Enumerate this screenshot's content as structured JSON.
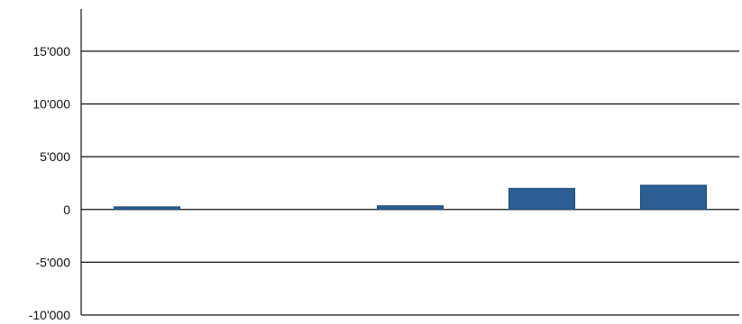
{
  "chart_data": {
    "type": "bar",
    "title": "",
    "xlabel": "",
    "ylabel": "",
    "categories": [
      "",
      "",
      "",
      "",
      ""
    ],
    "values": [
      250,
      0,
      350,
      2000,
      2300
    ],
    "ylim": [
      -10000,
      19000
    ],
    "yticks": [
      15000,
      10000,
      5000,
      0,
      -5000,
      -10000
    ],
    "ytick_labels": [
      "15'000",
      "10'000",
      "5'000",
      "0",
      "-5'000",
      "-10'000"
    ],
    "grid": true,
    "legend": "none",
    "bar_color": "#2b5f94",
    "bar_edge_color": "#1f4670"
  }
}
